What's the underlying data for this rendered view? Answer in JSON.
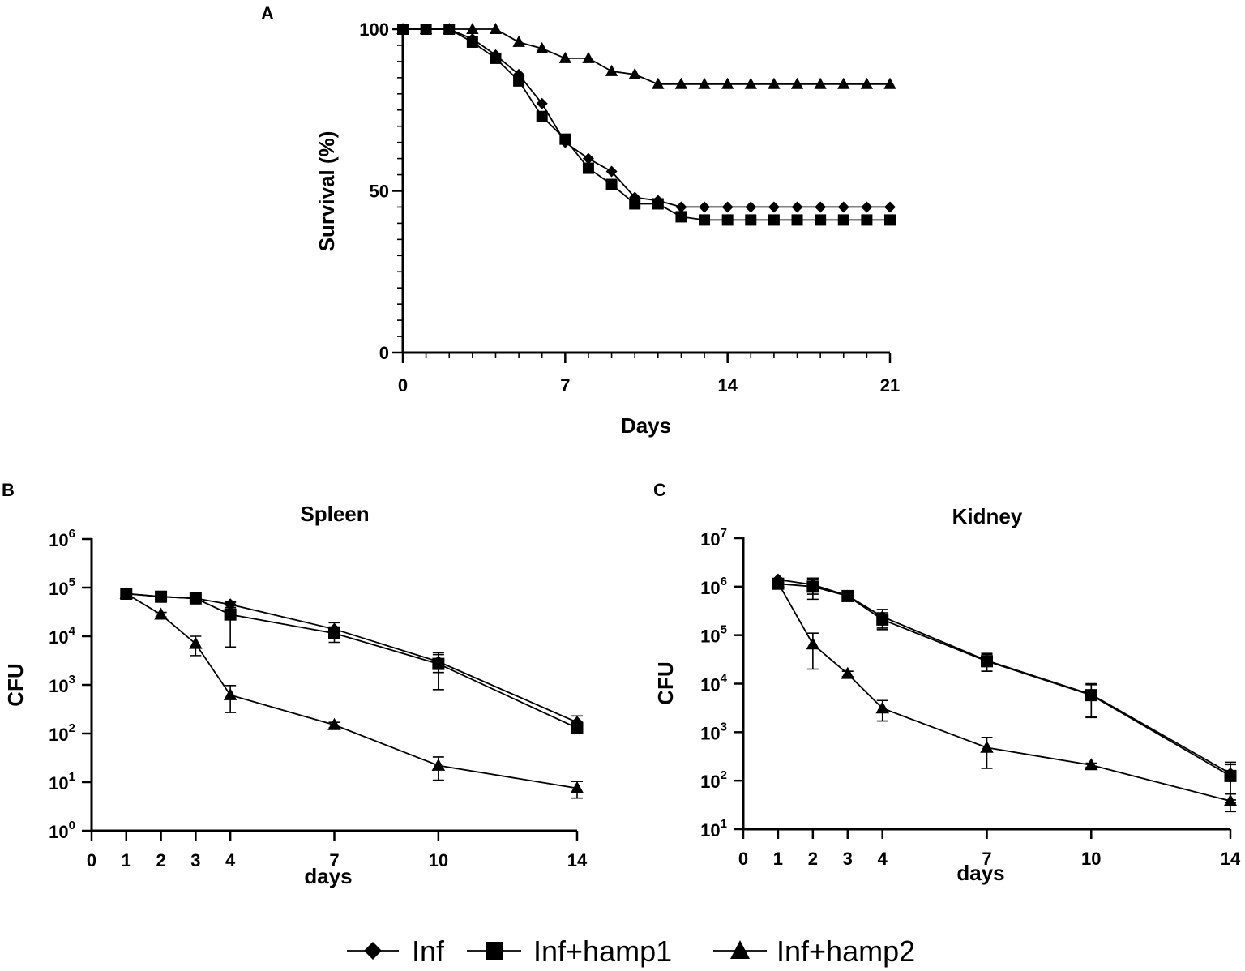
{
  "chart_data": [
    {
      "panel": "A",
      "type": "line",
      "title": "",
      "xlabel": "Days",
      "ylabel": "Survival (%)",
      "xlim": [
        0,
        21
      ],
      "ylim": [
        0,
        100
      ],
      "xticks": [
        0,
        7,
        14,
        21
      ],
      "yticks": [
        0,
        50,
        100
      ],
      "x": [
        0,
        1,
        2,
        3,
        4,
        5,
        6,
        7,
        8,
        9,
        10,
        11,
        12,
        13,
        14,
        15,
        16,
        17,
        18,
        19,
        20,
        21
      ],
      "series": [
        {
          "name": "Inf",
          "marker": "diamond",
          "values": [
            100,
            100,
            100,
            97,
            92,
            86,
            77,
            65,
            60,
            56,
            48,
            47,
            45,
            45,
            45,
            45,
            45,
            45,
            45,
            45,
            45,
            45
          ]
        },
        {
          "name": "Inf+hamp1",
          "marker": "square",
          "values": [
            100,
            100,
            100,
            96,
            91,
            84,
            73,
            66,
            57,
            52,
            46,
            46,
            42,
            41,
            41,
            41,
            41,
            41,
            41,
            41,
            41,
            41
          ]
        },
        {
          "name": "Inf+hamp2",
          "marker": "triangle",
          "values": [
            100,
            100,
            100,
            100,
            100,
            96,
            94,
            91,
            91,
            87,
            86,
            83,
            83,
            83,
            83,
            83,
            83,
            83,
            83,
            83,
            83,
            83
          ]
        }
      ]
    },
    {
      "panel": "B",
      "type": "line",
      "title": "Spleen",
      "xlabel": "days",
      "ylabel": "CFU",
      "yscale": "log",
      "xlim": [
        0,
        14
      ],
      "ylim_exp": [
        0,
        6
      ],
      "xticks": [
        0,
        1,
        2,
        3,
        4,
        7,
        10,
        14
      ],
      "yticks_exp": [
        0,
        1,
        2,
        3,
        4,
        5,
        6
      ],
      "y_tick_base": "10",
      "x": [
        1,
        2,
        3,
        4,
        7,
        10,
        14
      ],
      "series": [
        {
          "name": "Inf",
          "marker": "diamond",
          "values": [
            75000,
            65000,
            60000,
            45000,
            14000,
            3000,
            170
          ],
          "error": [
            5000,
            5000,
            5000,
            6000,
            5000,
            1200,
            60
          ]
        },
        {
          "name": "Inf+hamp1",
          "marker": "square",
          "values": [
            75000,
            65000,
            60000,
            28000,
            11500,
            2700,
            130
          ],
          "error": [
            5000,
            5000,
            5000,
            22000,
            4000,
            1900,
            30
          ]
        },
        {
          "name": "Inf+hamp2",
          "marker": "triangle",
          "values": [
            75000,
            28000,
            7000,
            620,
            150,
            22,
            7.5
          ],
          "error": [
            5000,
            3000,
            3000,
            350,
            20,
            11,
            2.8
          ]
        }
      ]
    },
    {
      "panel": "C",
      "type": "line",
      "title": "Kidney",
      "xlabel": "days",
      "ylabel": "CFU",
      "yscale": "log",
      "xlim": [
        0,
        14
      ],
      "ylim_exp": [
        1,
        7
      ],
      "xticks": [
        0,
        1,
        2,
        3,
        4,
        7,
        10,
        14
      ],
      "yticks_exp": [
        1,
        2,
        3,
        4,
        5,
        6,
        7
      ],
      "y_tick_base": "10",
      "x": [
        1,
        2,
        3,
        4,
        7,
        10,
        14
      ],
      "series": [
        {
          "name": "Inf",
          "marker": "diamond",
          "values": [
            1400000,
            1100000,
            650000,
            240000,
            30000,
            6000,
            140
          ],
          "error": [
            100000,
            400000,
            100000,
            100000,
            12000,
            4000,
            100
          ]
        },
        {
          "name": "Inf+hamp1",
          "marker": "square",
          "values": [
            1150000,
            1000000,
            640000,
            210000,
            29000,
            5800,
            125
          ],
          "error": [
            100000,
            450000,
            100000,
            80000,
            11000,
            3700,
            90
          ]
        },
        {
          "name": "Inf+hamp2",
          "marker": "triangle",
          "values": [
            1200000,
            65000,
            16000,
            3100,
            480,
            210,
            38
          ],
          "error": [
            100000,
            45000,
            2000,
            1400,
            300,
            20,
            15
          ]
        }
      ]
    }
  ],
  "legend": [
    {
      "label": "Inf",
      "marker": "diamond"
    },
    {
      "label": "Inf+hamp1",
      "marker": "square"
    },
    {
      "label": "Inf+hamp2",
      "marker": "triangle"
    }
  ],
  "colors": {
    "ink": "#000000",
    "background": "#ffffff"
  }
}
